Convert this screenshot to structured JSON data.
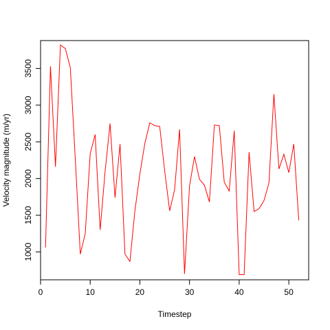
{
  "chart_data": {
    "type": "line",
    "title": "",
    "xlabel": "Timestep",
    "ylabel": "Velocity magnitude (m/yr)",
    "xlim": [
      0,
      54
    ],
    "ylim": [
      620,
      3880
    ],
    "xticks": [
      0,
      10,
      20,
      30,
      40,
      50
    ],
    "yticks": [
      1000,
      1500,
      2000,
      2500,
      3000,
      3500
    ],
    "grid": false,
    "legend": "none",
    "series": [
      {
        "color": "#ff0000",
        "x": [
          1,
          2,
          3,
          4,
          5,
          6,
          7,
          8,
          9,
          10,
          11,
          12,
          13,
          14,
          15,
          16,
          17,
          18,
          19,
          20,
          21,
          22,
          23,
          24,
          25,
          26,
          27,
          28,
          29,
          30,
          31,
          32,
          33,
          34,
          35,
          36,
          37,
          38,
          39,
          40,
          41,
          42,
          43,
          44,
          45,
          46,
          47,
          48,
          49,
          50,
          51,
          52
        ],
        "y": [
          1060,
          3530,
          2160,
          3820,
          3770,
          3510,
          2250,
          970,
          1250,
          2340,
          2600,
          1300,
          2100,
          2750,
          1740,
          2470,
          970,
          870,
          1560,
          2060,
          2480,
          2760,
          2720,
          2710,
          2100,
          1560,
          1850,
          2670,
          700,
          1900,
          2300,
          1990,
          1910,
          1680,
          2730,
          2720,
          1950,
          1830,
          2650,
          690,
          690,
          2360,
          1550,
          1590,
          1700,
          1940,
          3150,
          2130,
          2330,
          2080,
          2470,
          1430
        ]
      }
    ]
  }
}
